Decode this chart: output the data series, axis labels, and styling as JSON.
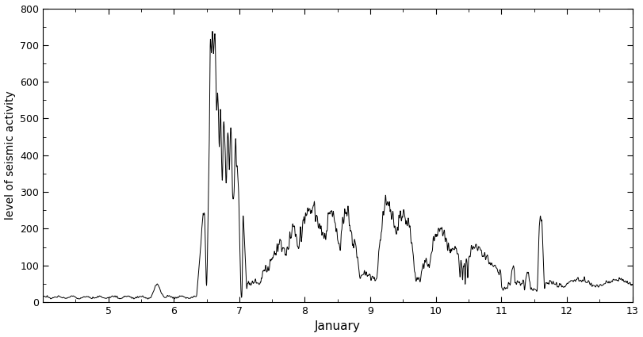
{
  "title": "",
  "xlabel": "January",
  "ylabel": "level of seismic activity",
  "xlim": [
    4.0,
    13.0
  ],
  "ylim": [
    0,
    800
  ],
  "yticks": [
    0,
    100,
    200,
    300,
    400,
    500,
    600,
    700,
    800
  ],
  "xticks": [
    5,
    6,
    7,
    8,
    9,
    10,
    11,
    12,
    13
  ],
  "line_color": "#000000",
  "line_width": 0.7,
  "bg_color": "#ffffff",
  "seed": 17
}
